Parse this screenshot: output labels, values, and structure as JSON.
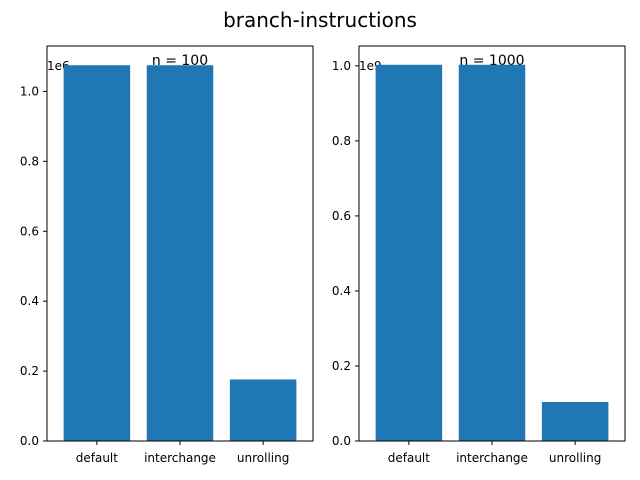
{
  "figure": {
    "title": "branch-instructions"
  },
  "chart_data": [
    {
      "type": "bar",
      "title": "n = 100",
      "categories": [
        "default",
        "interchange",
        "unrolling"
      ],
      "values": [
        1075000,
        1075000,
        176000
      ],
      "ylim": [
        0,
        1130000
      ],
      "yticks": [
        0,
        200000,
        400000,
        600000,
        800000,
        1000000
      ],
      "ytick_labels": [
        "0.0",
        "0.2",
        "0.4",
        "0.6",
        "0.8",
        "1.0"
      ],
      "offset_label": "1e6",
      "xlabel": "",
      "ylabel": "",
      "color": "#1f77b4",
      "grid": false
    },
    {
      "type": "bar",
      "title": "n = 1000",
      "categories": [
        "default",
        "interchange",
        "unrolling"
      ],
      "values": [
        1003000000,
        1003000000,
        104000000
      ],
      "ylim": [
        0,
        1053000000
      ],
      "yticks": [
        0,
        200000000,
        400000000,
        600000000,
        800000000,
        1000000000
      ],
      "ytick_labels": [
        "0.0",
        "0.2",
        "0.4",
        "0.6",
        "0.8",
        "1.0"
      ],
      "offset_label": "1e9",
      "xlabel": "",
      "ylabel": "",
      "color": "#1f77b4",
      "grid": false
    }
  ]
}
